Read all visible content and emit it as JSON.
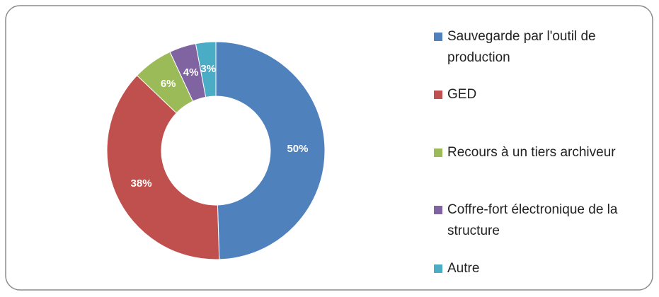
{
  "chart_data": {
    "type": "donut",
    "categories": [
      "Sauvegarde par l'outil de production",
      "GED",
      "Recours à un tiers archiveur",
      "Coffre-fort électronique de la structure",
      "Autre"
    ],
    "values": [
      50,
      38,
      6,
      4,
      3
    ],
    "value_labels": [
      "50%",
      "38%",
      "6%",
      "4%",
      "3%"
    ],
    "colors": [
      "#4f81bd",
      "#c0504d",
      "#9bbb59",
      "#8064a2",
      "#4bacc6"
    ],
    "legend": "right"
  }
}
